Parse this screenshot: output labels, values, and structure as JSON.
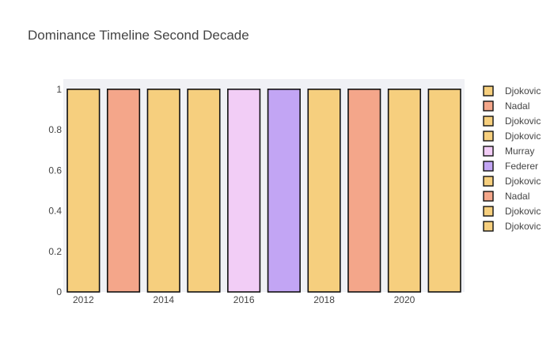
{
  "chart_data": {
    "type": "bar",
    "title": "Dominance Timeline Second Decade",
    "xlabel": "",
    "ylabel": "",
    "x": [
      2012,
      2013,
      2014,
      2015,
      2016,
      2017,
      2018,
      2019,
      2020,
      2021
    ],
    "xtick_labels": [
      "2012",
      "2014",
      "2016",
      "2018",
      "2020"
    ],
    "ytick_labels": [
      "0",
      "0.2",
      "0.4",
      "0.6",
      "0.8",
      "1"
    ],
    "ylim": [
      0,
      1.05
    ],
    "grid": false,
    "legend_position": "right",
    "series": [
      {
        "name": "Djokovic",
        "x": 2012,
        "value": 1,
        "color": "#f6cf7e"
      },
      {
        "name": "Nadal",
        "x": 2013,
        "value": 1,
        "color": "#f4a68a"
      },
      {
        "name": "Djokovic",
        "x": 2014,
        "value": 1,
        "color": "#f6cf7e"
      },
      {
        "name": "Djokovic",
        "x": 2015,
        "value": 1,
        "color": "#f6cf7e"
      },
      {
        "name": "Murray",
        "x": 2016,
        "value": 1,
        "color": "#f2cdf6"
      },
      {
        "name": "Federer",
        "x": 2017,
        "value": 1,
        "color": "#c2a5f4"
      },
      {
        "name": "Djokovic",
        "x": 2018,
        "value": 1,
        "color": "#f6cf7e"
      },
      {
        "name": "Nadal",
        "x": 2019,
        "value": 1,
        "color": "#f4a68a"
      },
      {
        "name": "Djokovic",
        "x": 2020,
        "value": 1,
        "color": "#f6cf7e"
      },
      {
        "name": "Djokovic",
        "x": 2021,
        "value": 1,
        "color": "#f6cf7e"
      }
    ],
    "colors": {
      "plot_background": "#f0f1f5",
      "bar_outline": "#111111"
    }
  }
}
